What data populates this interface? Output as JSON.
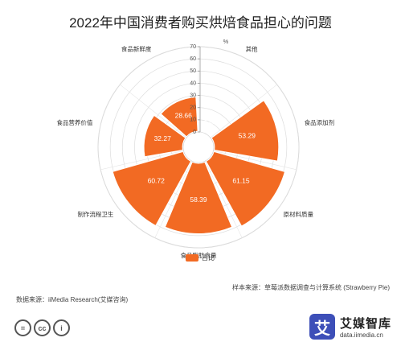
{
  "title": "2022年中国消费者购买烘焙食品担心的问题",
  "chart_data": {
    "type": "polar-bar",
    "unit": "%",
    "categories": [
      "其他",
      "食品添加剂",
      "原材料质量",
      "食品脂肪含量",
      "制作流程卫生",
      "食品营养价值",
      "食品新鲜度"
    ],
    "values": [
      0.64,
      53.29,
      61.15,
      58.39,
      60.72,
      32.27,
      28.66
    ],
    "radial_ticks": [
      0,
      10,
      20,
      30,
      40,
      50,
      60,
      70
    ],
    "rmax": 70,
    "series": [
      {
        "name": "占比",
        "color": "#f26a23"
      }
    ]
  },
  "sample_source": "样本来源：草莓派数据调查与计算系统 (Strawberry Pie)",
  "data_source": "数据来源：iiMedia Research(艾媒咨询)",
  "cc": {
    "c1": "=",
    "c2": "cc",
    "c3": "i"
  },
  "brand": {
    "logo": "艾",
    "name": "艾媒智库",
    "url": "data.iimedia.cn"
  },
  "colors": {
    "bar": "#f26a23",
    "ring": "#dddddd",
    "ring_fill": "#ffffff"
  }
}
